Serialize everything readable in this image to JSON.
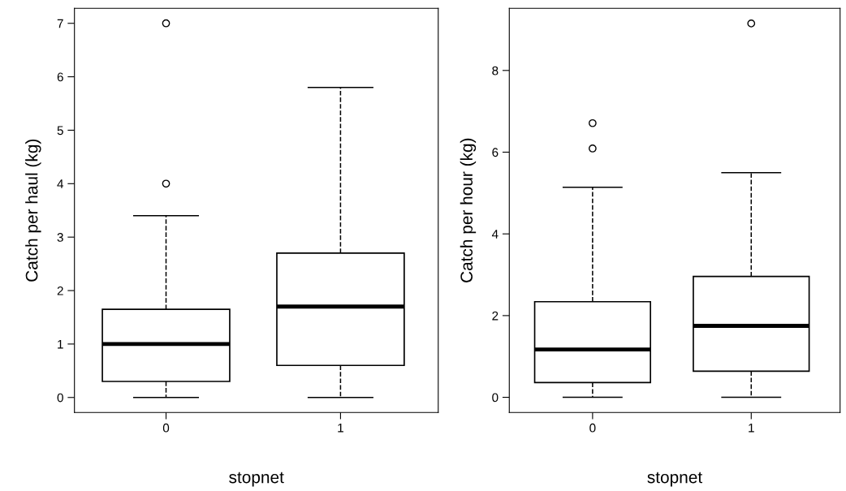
{
  "chart_data": [
    {
      "type": "box",
      "categories": [
        "0",
        "1"
      ],
      "xlabel": "stopnet",
      "ylabel": "Catch per haul (kg)",
      "ylim": [
        -0.28,
        7.28
      ],
      "yticks": [
        0,
        1,
        2,
        3,
        4,
        5,
        6,
        7
      ],
      "marker": "circle",
      "boxes": [
        {
          "low": 0,
          "q1": 0.3,
          "median": 1.0,
          "q3": 1.65,
          "high": 3.4,
          "outliers": [
            4,
            7
          ]
        },
        {
          "low": 0,
          "q1": 0.6,
          "median": 1.7,
          "q3": 2.7,
          "high": 5.8
        }
      ]
    },
    {
      "type": "box",
      "categories": [
        "0",
        "1"
      ],
      "xlabel": "stopnet",
      "ylabel": "Catch per hour (kg)",
      "ylim": [
        -0.37,
        9.52
      ],
      "yticks": [
        0,
        2,
        4,
        6,
        8
      ],
      "marker": "circle",
      "boxes": [
        {
          "low": 0,
          "q1": 0.36,
          "median": 1.17,
          "q3": 2.34,
          "high": 5.14,
          "outliers": [
            6.09,
            6.71
          ]
        },
        {
          "low": 0,
          "q1": 0.64,
          "median": 1.75,
          "q3": 2.96,
          "high": 5.5,
          "outliers": [
            9.15
          ]
        }
      ]
    }
  ]
}
